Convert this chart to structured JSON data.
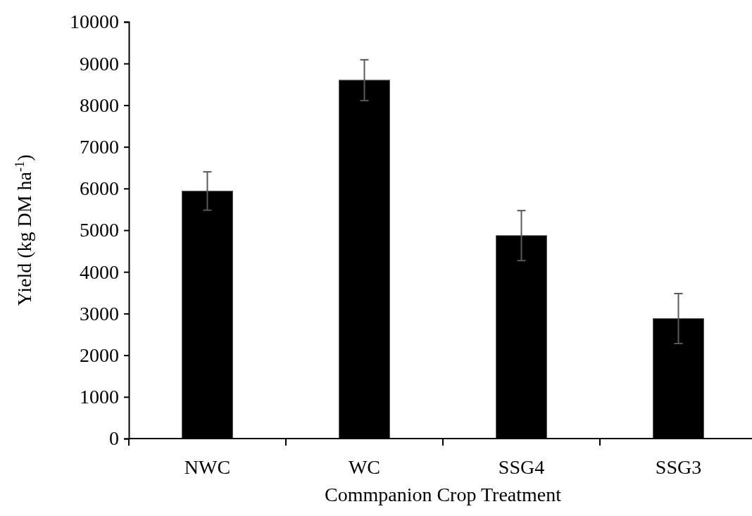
{
  "chart_data": {
    "type": "bar",
    "xlabel": "Commpanion Crop Treatment",
    "ylabel": "Yield (kg DM ha$^{-1}$)",
    "categories": [
      "NWC",
      "WC",
      "SSG4",
      "SSG3"
    ],
    "values": [
      5940,
      8600,
      4870,
      2880
    ],
    "errors": [
      460,
      490,
      600,
      600
    ],
    "color": "#000000",
    "ylim": [
      0,
      10000
    ],
    "yticks": [
      0,
      1000,
      2000,
      3000,
      4000,
      5000,
      6000,
      7000,
      8000,
      9000,
      10000
    ],
    "grid": false
  }
}
